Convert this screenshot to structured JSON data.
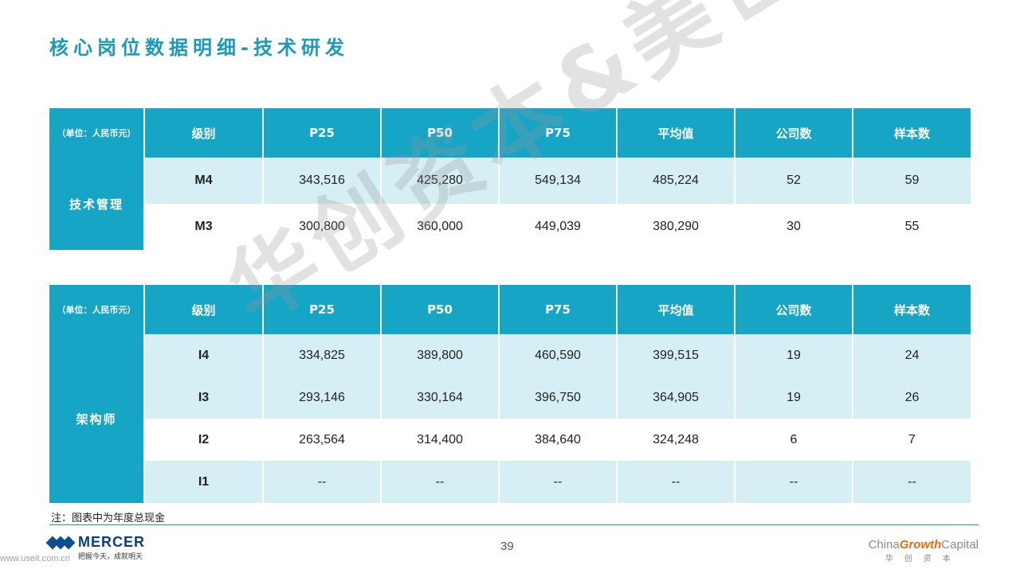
{
  "title": "核心岗位数据明细-技术研发",
  "headers": {
    "unit": "（单位：人民币元）",
    "level": "级别",
    "p25": "P25",
    "p50": "P50",
    "p75": "P75",
    "avg": "平均值",
    "companies": "公司数",
    "samples": "样本数"
  },
  "table1": {
    "group": "技术管理",
    "rows": [
      {
        "level": "M4",
        "p25": "343,516",
        "p50": "425,280",
        "p75": "549,134",
        "avg": "485,224",
        "companies": "52",
        "samples": "59"
      },
      {
        "level": "M3",
        "p25": "300,800",
        "p50": "360,000",
        "p75": "449,039",
        "avg": "380,290",
        "companies": "30",
        "samples": "55"
      }
    ]
  },
  "table2": {
    "group": "架构师",
    "rows": [
      {
        "level": "I4",
        "p25": "334,825",
        "p50": "389,800",
        "p75": "460,590",
        "avg": "399,515",
        "companies": "19",
        "samples": "24"
      },
      {
        "level": "I3",
        "p25": "293,146",
        "p50": "330,164",
        "p75": "396,750",
        "avg": "364,905",
        "companies": "19",
        "samples": "26"
      },
      {
        "level": "I2",
        "p25": "263,564",
        "p50": "314,400",
        "p75": "384,640",
        "avg": "324,248",
        "companies": "6",
        "samples": "7"
      },
      {
        "level": "I1",
        "p25": "--",
        "p50": "--",
        "p75": "--",
        "avg": "--",
        "companies": "--",
        "samples": "--"
      }
    ]
  },
  "note": "注：图表中为年度总现金",
  "watermark": "华创资本&美世",
  "footer": {
    "mercer_name": "MERCER",
    "mercer_slogan": "把握今天，成就明天",
    "website": "www.useit.com.cn",
    "page_number": "39",
    "cgc_prefix": "China",
    "cgc_accent": "Growth",
    "cgc_suffix": "Capital",
    "cgc_sub": "华创资本"
  },
  "colors": {
    "header_teal": "#17a5c6",
    "row_light": "#d5eff5",
    "title_teal": "#1a9ab8",
    "mercer_blue": "#0a3f7a",
    "cgc_orange": "#e86a10"
  }
}
